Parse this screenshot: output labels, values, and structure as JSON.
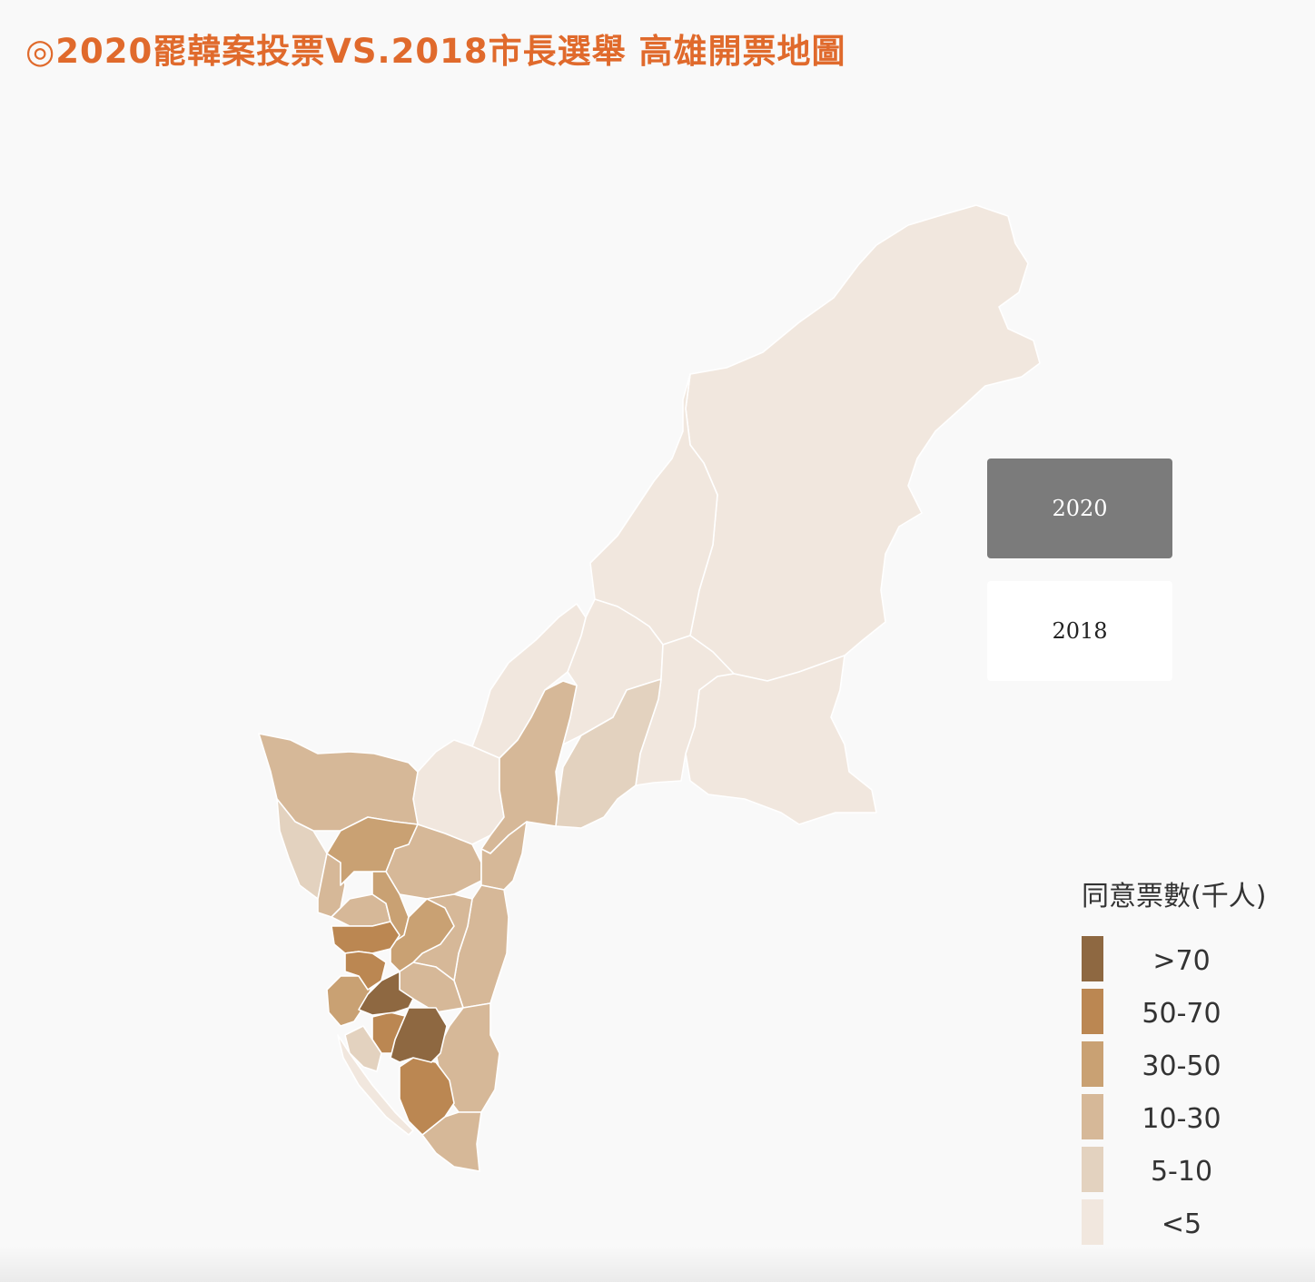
{
  "title": "◎2020罷韓案投票VS.2018市長選舉 高雄開票地圖",
  "toggle": {
    "active_label": "2020",
    "inactive_label": "2018"
  },
  "legend": {
    "title": "同意票數(千人)",
    "items": [
      {
        "label": ">70",
        "color": "#8e6841"
      },
      {
        "label": "50-70",
        "color": "#bb8752"
      },
      {
        "label": "30-50",
        "color": "#c9a173"
      },
      {
        "label": "10-30",
        "color": "#d6b898"
      },
      {
        "label": "5-10",
        "color": "#e3d2bf"
      },
      {
        "label": "<5",
        "color": "#f1e7de"
      }
    ]
  }
}
